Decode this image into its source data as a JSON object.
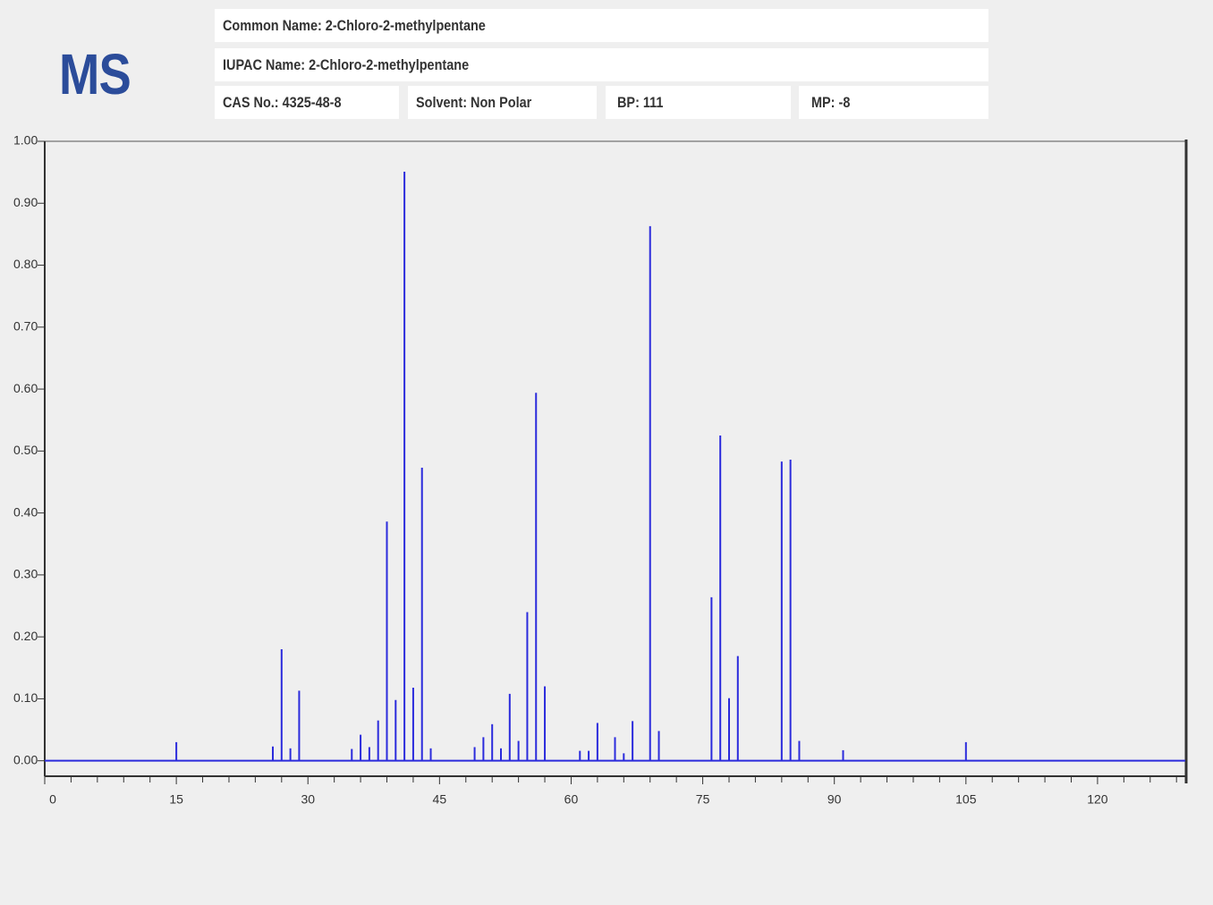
{
  "header": {
    "logo": "MS",
    "common_name": "Common Name: 2-Chloro-2-methylpentane",
    "iupac_name": "IUPAC Name: 2-Chloro-2-methylpentane",
    "cas": "CAS No.: 4325-48-8",
    "solvent": "Solvent: Non Polar",
    "bp": "BP: 111",
    "mp": "MP: -8"
  },
  "chart_data": {
    "type": "spectrum",
    "color": "#2b2bdc",
    "grid": false,
    "x": [
      15,
      26,
      27,
      28,
      29,
      35,
      36,
      37,
      38,
      39,
      40,
      41,
      42,
      43,
      44,
      49,
      50,
      51,
      52,
      53,
      54,
      55,
      56,
      57,
      61,
      62,
      63,
      65,
      66,
      67,
      69,
      70,
      76,
      77,
      78,
      79,
      84,
      85,
      86,
      91,
      105
    ],
    "values": [
      0.03,
      0.023,
      0.18,
      0.02,
      0.113,
      0.019,
      0.042,
      0.022,
      0.065,
      0.386,
      0.098,
      0.951,
      0.118,
      0.473,
      0.02,
      0.022,
      0.038,
      0.059,
      0.02,
      0.108,
      0.032,
      0.24,
      0.594,
      0.12,
      0.016,
      0.016,
      0.061,
      0.038,
      0.012,
      0.064,
      0.863,
      0.048,
      0.264,
      0.525,
      0.101,
      0.169,
      0.483,
      0.486,
      0.032,
      0.017,
      0.03
    ],
    "xlim": [
      0,
      130
    ],
    "ylim": [
      -0.025,
      1
    ],
    "xticks": [
      0,
      15,
      30,
      45,
      60,
      75,
      90,
      105,
      120
    ],
    "xminorticks": [
      3,
      6,
      9,
      12,
      18,
      21,
      24,
      27,
      33,
      36,
      39,
      42,
      48,
      51,
      54,
      57,
      63,
      66,
      69,
      72,
      78,
      81,
      84,
      87,
      93,
      96,
      99,
      102,
      108,
      111,
      114,
      117,
      123,
      126,
      129
    ],
    "yticks": [
      {
        "value": 0,
        "label": "0.00"
      },
      {
        "value": 0.1,
        "label": "0.10"
      },
      {
        "value": 0.2,
        "label": "0.20"
      },
      {
        "value": 0.3,
        "label": "0.30"
      },
      {
        "value": 0.4,
        "label": "0.40"
      },
      {
        "value": 0.5,
        "label": "0.50"
      },
      {
        "value": 0.6,
        "label": "0.60"
      },
      {
        "value": 0.7,
        "label": "0.70"
      },
      {
        "value": 0.8,
        "label": "0.80"
      },
      {
        "value": 0.9,
        "label": "0.90"
      },
      {
        "value": 1,
        "label": "1.00"
      }
    ]
  }
}
